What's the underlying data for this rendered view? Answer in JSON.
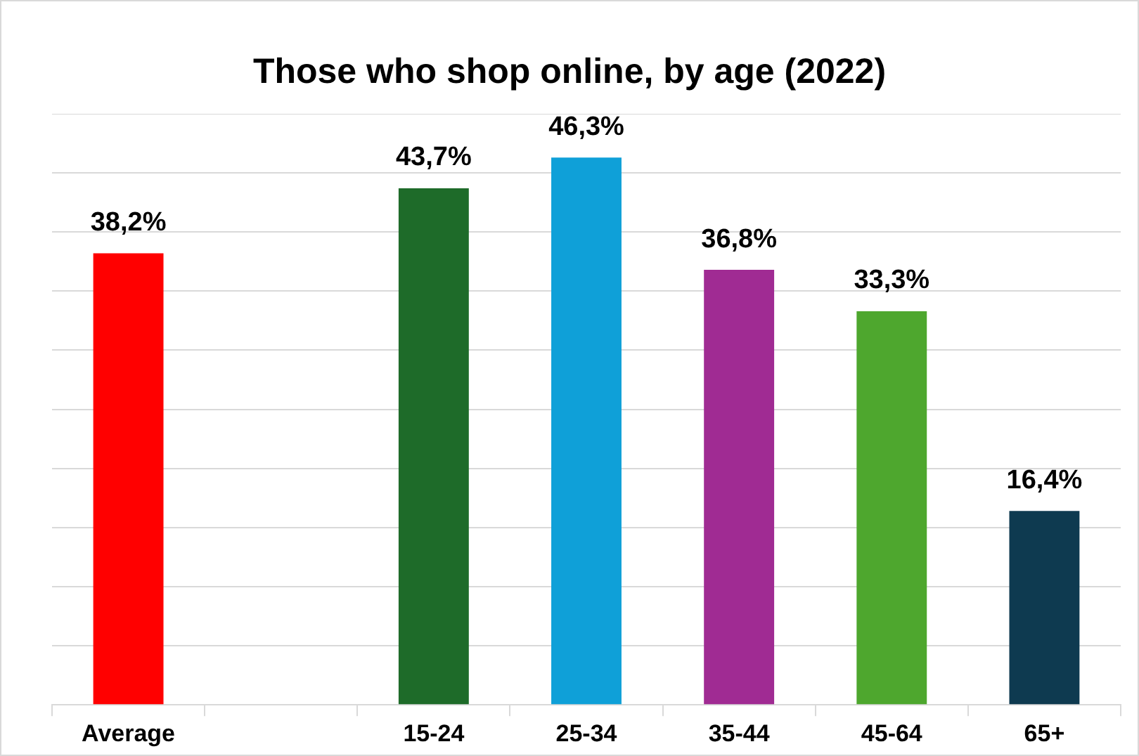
{
  "chart_data": {
    "type": "bar",
    "title": "Those who shop online, by age (2022)",
    "categories": [
      "Average",
      null,
      "15-24",
      "25-34",
      "35-44",
      "45-64",
      "65+"
    ],
    "values": [
      38.2,
      null,
      43.7,
      46.3,
      36.8,
      33.3,
      16.4
    ],
    "value_labels": [
      "38,2%",
      null,
      "43,7%",
      "46,3%",
      "36,8%",
      "33,3%",
      "16,4%"
    ],
    "colors": [
      "#ff0000",
      null,
      "#1e6b29",
      "#0fa0d8",
      "#a02b93",
      "#4ea72e",
      "#0e3a50"
    ],
    "ylim": [
      0,
      50
    ],
    "yticks": [
      {
        "value": 0,
        "label": null
      },
      {
        "value": 5,
        "label": null
      },
      {
        "value": 10,
        "label": null
      },
      {
        "value": 15,
        "label": null
      },
      {
        "value": 20,
        "label": null
      },
      {
        "value": 25,
        "label": null
      },
      {
        "value": 30,
        "label": null
      },
      {
        "value": 35,
        "label": null
      },
      {
        "value": 40,
        "label": null
      },
      {
        "value": 45,
        "label": null
      },
      {
        "value": 50,
        "label": null
      }
    ],
    "grid": "y",
    "tick_labels": "x",
    "legend": false
  }
}
